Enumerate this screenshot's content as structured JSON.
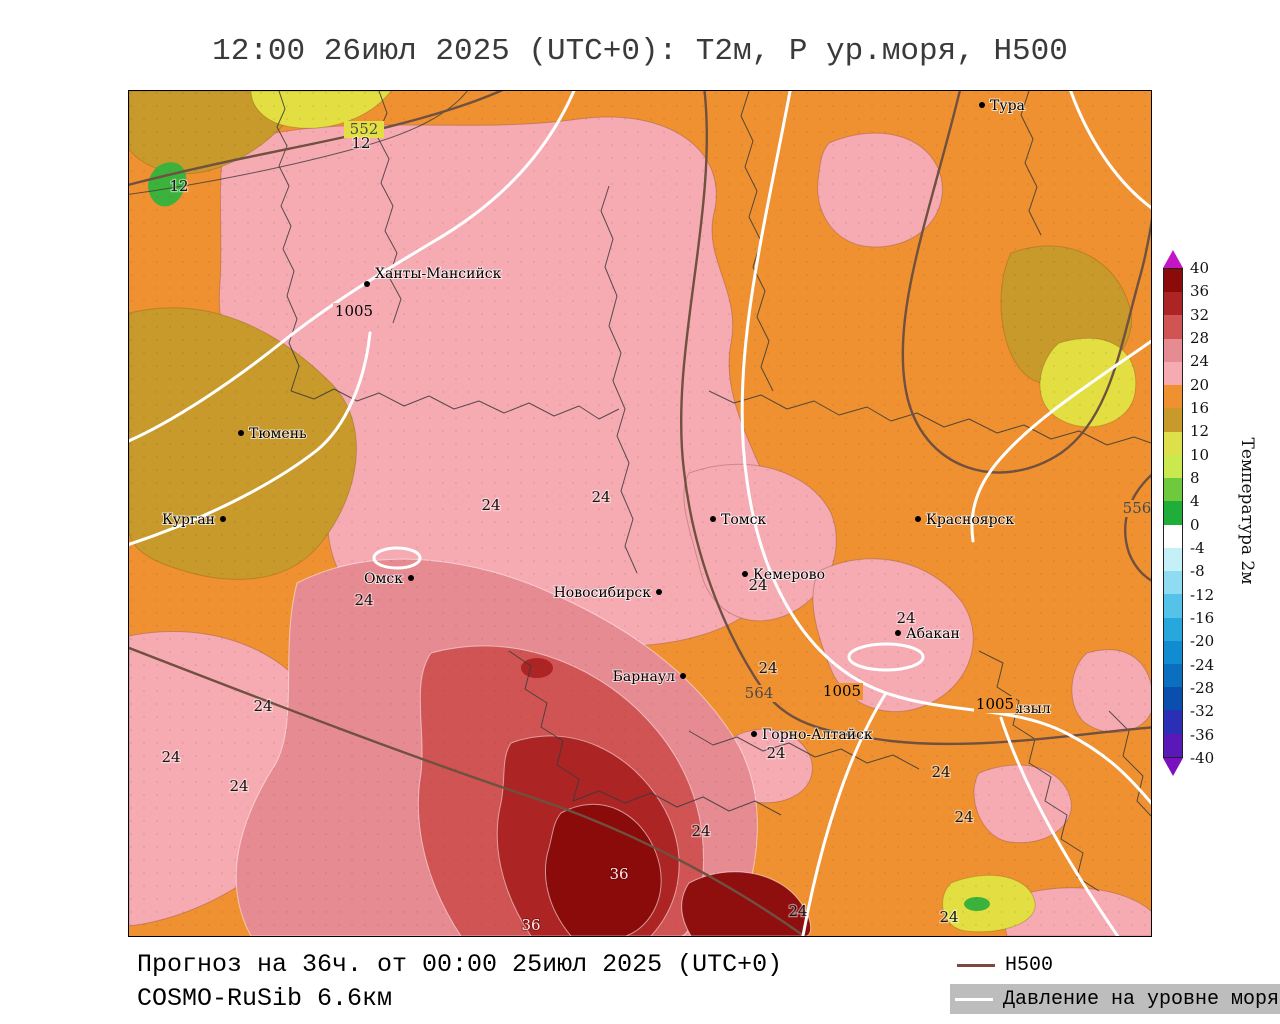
{
  "title": "12:00 26июл 2025 (UTC+0): Т2м, P ур.моря, H500",
  "footer": {
    "forecast_line": "Прогноз на 36ч. от 00:00 25июл 2025 (UTC+0)",
    "model_line": "COSMO-RuSib 6.6км"
  },
  "map_legend": {
    "h500_label": "H500",
    "pressure_label": "Давление на уровне моря"
  },
  "colorbar": {
    "title": "Температура 2м",
    "tick_labels": [
      "40",
      "36",
      "32",
      "28",
      "24",
      "20",
      "16",
      "12",
      "10",
      "8",
      "4",
      "0",
      "-4",
      "-8",
      "-12",
      "-16",
      "-20",
      "-24",
      "-28",
      "-32",
      "-36",
      "-40"
    ],
    "band_colors_top_to_bottom": [
      "#8b0a0a",
      "#ad2424",
      "#d05454",
      "#e78b92",
      "#f6abb3",
      "#ef9130",
      "#c8992b",
      "#dde04a",
      "#c9e94f",
      "#6fc93c",
      "#1fae3a",
      "#ffffff",
      "#c5f0f8",
      "#8fdcf2",
      "#55c2ea",
      "#28a7dd",
      "#128cd0",
      "#0b6fc0",
      "#0b4fae",
      "#2b2fb5",
      "#5a18b8"
    ],
    "arrow_top_color": "#c516c5",
    "arrow_bottom_color": "#7a10c0"
  },
  "cities": [
    {
      "name": "Тура"
    },
    {
      "name": "Ханты-Мансийск"
    },
    {
      "name": "Тюмень"
    },
    {
      "name": "Курган"
    },
    {
      "name": "Омск"
    },
    {
      "name": "Томск"
    },
    {
      "name": "Красноярск"
    },
    {
      "name": "Новосибирск"
    },
    {
      "name": "Кемерово"
    },
    {
      "name": "Абакан"
    },
    {
      "name": "Барнаул"
    },
    {
      "name": "Горно-Алтайск"
    },
    {
      "name": "Кызыл"
    }
  ],
  "contour_labels": {
    "h500": [
      "552",
      "564",
      "556"
    ],
    "pressure": [
      "1005",
      "1005",
      "1005"
    ],
    "temperature": [
      "12",
      "12",
      "24",
      "24",
      "24",
      "24",
      "24",
      "24",
      "24",
      "24",
      "24",
      "24",
      "24",
      "24",
      "24",
      "24",
      "24",
      "36",
      "36"
    ]
  }
}
